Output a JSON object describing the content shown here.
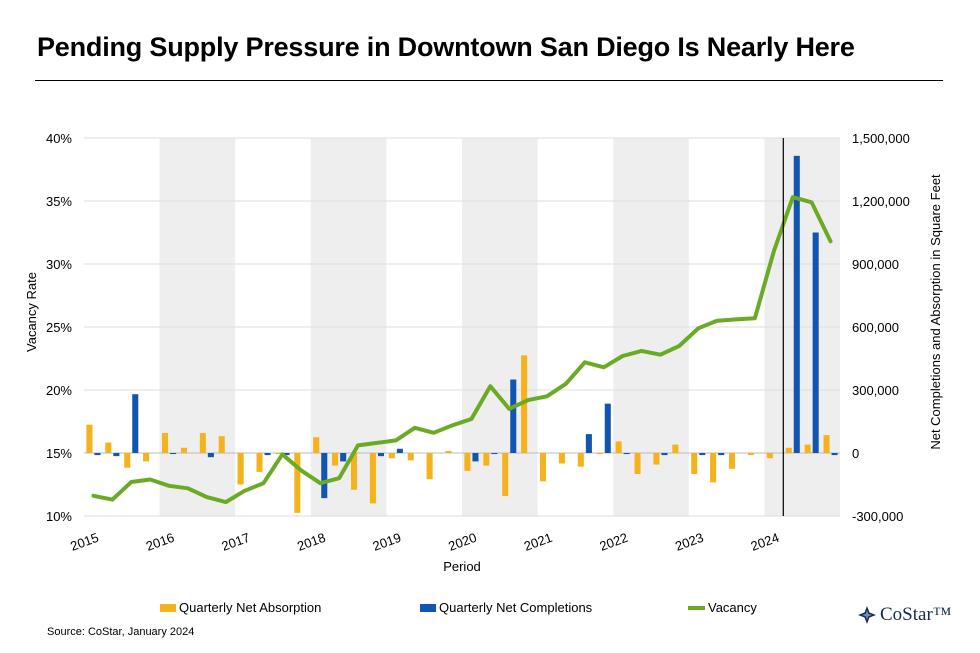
{
  "header": {
    "title": "Pending Supply Pressure in Downtown San Diego Is Nearly Here"
  },
  "footer": {
    "source": "Source: CoStar, January 2024",
    "logo_text": "CoStar™"
  },
  "colors": {
    "absorption": "#f5b21b",
    "completions": "#1155b0",
    "vacancy": "#6aaa24",
    "shade": "#eeeeee",
    "grid": "#dddddd"
  },
  "chart_data": {
    "type": "bar",
    "title": "Pending Supply Pressure in Downtown San Diego Is Nearly Here",
    "xlabel": "Period",
    "ylabel_left": "Vacancy Rate",
    "ylabel_right": "Net Completions and Absorption in Square Feet",
    "x_tick_labels": [
      "2015",
      "2016",
      "2017",
      "2018",
      "2019",
      "2020",
      "2021",
      "2022",
      "2023",
      "2024"
    ],
    "y_left_ticks": [
      "10%",
      "15%",
      "20%",
      "25%",
      "30%",
      "35%",
      "40%"
    ],
    "y_left_range": [
      10,
      40
    ],
    "y_right_ticks": [
      "-300,000",
      "0",
      "300,000",
      "600,000",
      "900,000",
      "1,200,000",
      "1,500,000"
    ],
    "y_right_range": [
      -300000,
      1500000
    ],
    "shaded_years": [
      "2016",
      "2018",
      "2020",
      "2022",
      "2024"
    ],
    "forecast_start": "2024 Q2",
    "legend": [
      "Quarterly Net Absorption",
      "Quarterly Net Completions",
      "Vacancy"
    ],
    "legend_position": "bottom",
    "quarters": [
      "2015 Q1",
      "2015 Q2",
      "2015 Q3",
      "2015 Q4",
      "2016 Q1",
      "2016 Q2",
      "2016 Q3",
      "2016 Q4",
      "2017 Q1",
      "2017 Q2",
      "2017 Q3",
      "2017 Q4",
      "2018 Q1",
      "2018 Q2",
      "2018 Q3",
      "2018 Q4",
      "2019 Q1",
      "2019 Q2",
      "2019 Q3",
      "2019 Q4",
      "2020 Q1",
      "2020 Q2",
      "2020 Q3",
      "2020 Q4",
      "2021 Q1",
      "2021 Q2",
      "2021 Q3",
      "2021 Q4",
      "2022 Q1",
      "2022 Q2",
      "2022 Q3",
      "2022 Q4",
      "2023 Q1",
      "2023 Q2",
      "2023 Q3",
      "2023 Q4",
      "2024 Q1",
      "2024 Q2",
      "2024 Q3",
      "2024 Q4"
    ],
    "series": [
      {
        "name": "Quarterly Net Absorption",
        "axis": "right",
        "kind": "bar",
        "values": [
          135000,
          50000,
          -70000,
          -40000,
          95000,
          25000,
          95000,
          80000,
          -150000,
          -90000,
          -5000,
          -285000,
          75000,
          -60000,
          -175000,
          -240000,
          -25000,
          -35000,
          -125000,
          10000,
          -85000,
          -60000,
          -205000,
          465000,
          -135000,
          -50000,
          -65000,
          -5000,
          55000,
          -100000,
          -55000,
          40000,
          -100000,
          -140000,
          -75000,
          -10000,
          -25000,
          25000,
          40000,
          85000
        ]
      },
      {
        "name": "Quarterly Net Completions",
        "axis": "right",
        "kind": "bar",
        "values": [
          -10000,
          -15000,
          280000,
          0,
          -5000,
          0,
          -20000,
          0,
          0,
          -10000,
          -10000,
          0,
          -215000,
          -40000,
          0,
          -15000,
          20000,
          0,
          0,
          0,
          -40000,
          -5000,
          350000,
          0,
          0,
          0,
          90000,
          235000,
          -5000,
          0,
          -10000,
          0,
          -10000,
          -10000,
          0,
          0,
          0,
          1415000,
          1050000,
          -10000
        ]
      },
      {
        "name": "Vacancy",
        "axis": "left",
        "kind": "line",
        "values": [
          11.6,
          11.3,
          12.7,
          12.9,
          12.4,
          12.2,
          11.5,
          11.1,
          12.0,
          12.6,
          14.9,
          13.6,
          12.6,
          13.0,
          15.6,
          15.8,
          16.0,
          17.0,
          16.6,
          17.2,
          17.7,
          20.3,
          18.5,
          19.2,
          19.5,
          20.5,
          22.2,
          21.8,
          22.7,
          23.1,
          22.8,
          23.5,
          24.9,
          25.5,
          25.6,
          25.7,
          31.0,
          35.3,
          34.9,
          31.8
        ]
      }
    ]
  }
}
